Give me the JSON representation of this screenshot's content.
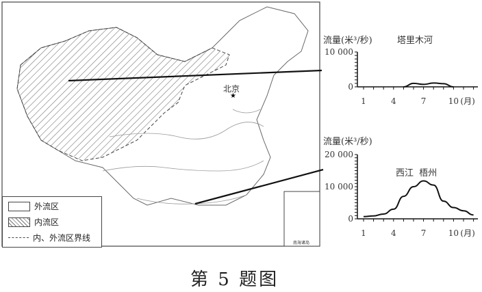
{
  "map": {
    "city_label": "北京",
    "inset_label": "南海诸岛",
    "legend": {
      "items": [
        {
          "label": "外流区",
          "style": "blank"
        },
        {
          "label": "内流区",
          "style": "hatched"
        },
        {
          "label": "内、外流区界线",
          "style": "dashed"
        }
      ]
    }
  },
  "caption": "第 5 题图",
  "chart_data": [
    {
      "type": "line",
      "title": "塔里木河",
      "ylabel": "流量(米³/秒)",
      "xlabel": "(月)",
      "x": [
        1,
        2,
        3,
        4,
        5,
        6,
        7,
        8,
        9,
        10,
        11,
        12
      ],
      "x_tick_labels": [
        "1",
        "4",
        "7",
        "10"
      ],
      "y_tick_labels": [
        "0",
        "10 000"
      ],
      "ylim": [
        0,
        10000
      ],
      "series": [
        {
          "values": [
            0,
            0,
            0,
            0,
            0,
            1000,
            700,
            1100,
            900,
            0,
            0,
            0
          ]
        }
      ]
    },
    {
      "type": "line",
      "title": "西江  梧州",
      "ylabel": "流量(米³/秒)",
      "xlabel": "(月)",
      "x": [
        1,
        2,
        3,
        4,
        5,
        6,
        7,
        8,
        9,
        10,
        11,
        12
      ],
      "x_tick_labels": [
        "1",
        "4",
        "7",
        "10"
      ],
      "y_tick_labels": [
        "0",
        "10 000",
        "20 000"
      ],
      "ylim": [
        0,
        20000
      ],
      "series": [
        {
          "values": [
            700,
            900,
            1500,
            3000,
            7000,
            10000,
            11800,
            10500,
            5500,
            3500,
            2500,
            1200
          ]
        }
      ]
    }
  ]
}
